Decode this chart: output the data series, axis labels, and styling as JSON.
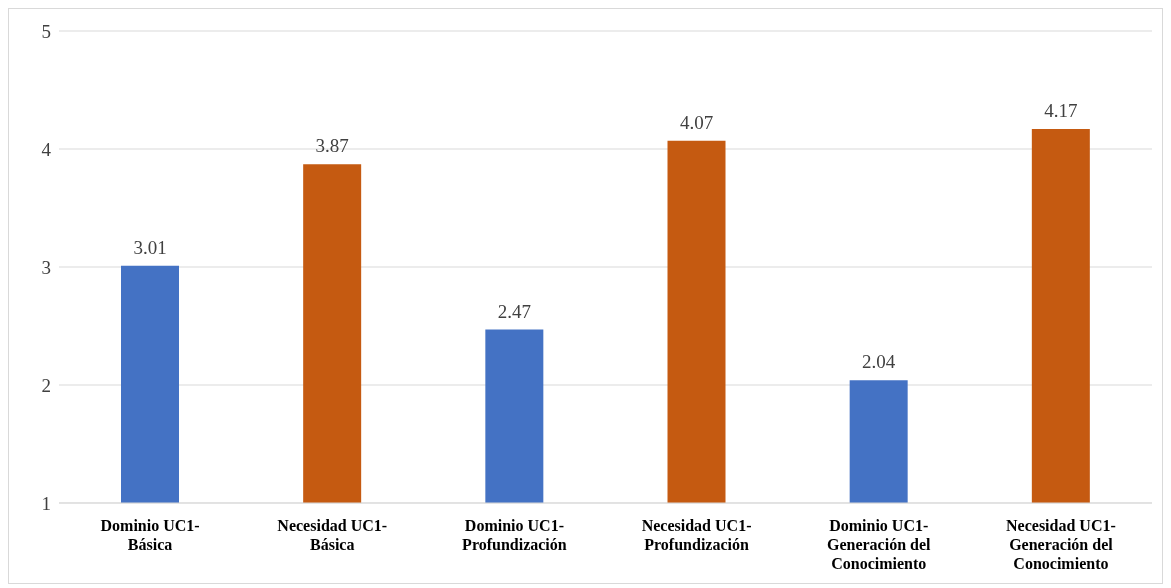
{
  "chart_data": {
    "type": "bar",
    "categories": [
      "Dominio UC1-Básica",
      "Necesidad UC1-Básica",
      "Dominio UC1-Profundización",
      "Necesidad UC1-Profundización",
      "Dominio UC1-Generación del Conocimiento",
      "Necesidad UC1-Generación del Conocimiento"
    ],
    "values": [
      3.01,
      3.87,
      2.47,
      4.07,
      2.04,
      4.17
    ],
    "colors": [
      "#4472c4",
      "#c55a11",
      "#4472c4",
      "#c55a11",
      "#4472c4",
      "#c55a11"
    ],
    "ylim": [
      1,
      5
    ],
    "yticks": [
      1,
      2,
      3,
      4,
      5
    ],
    "grid": "y",
    "data_labels": true
  }
}
